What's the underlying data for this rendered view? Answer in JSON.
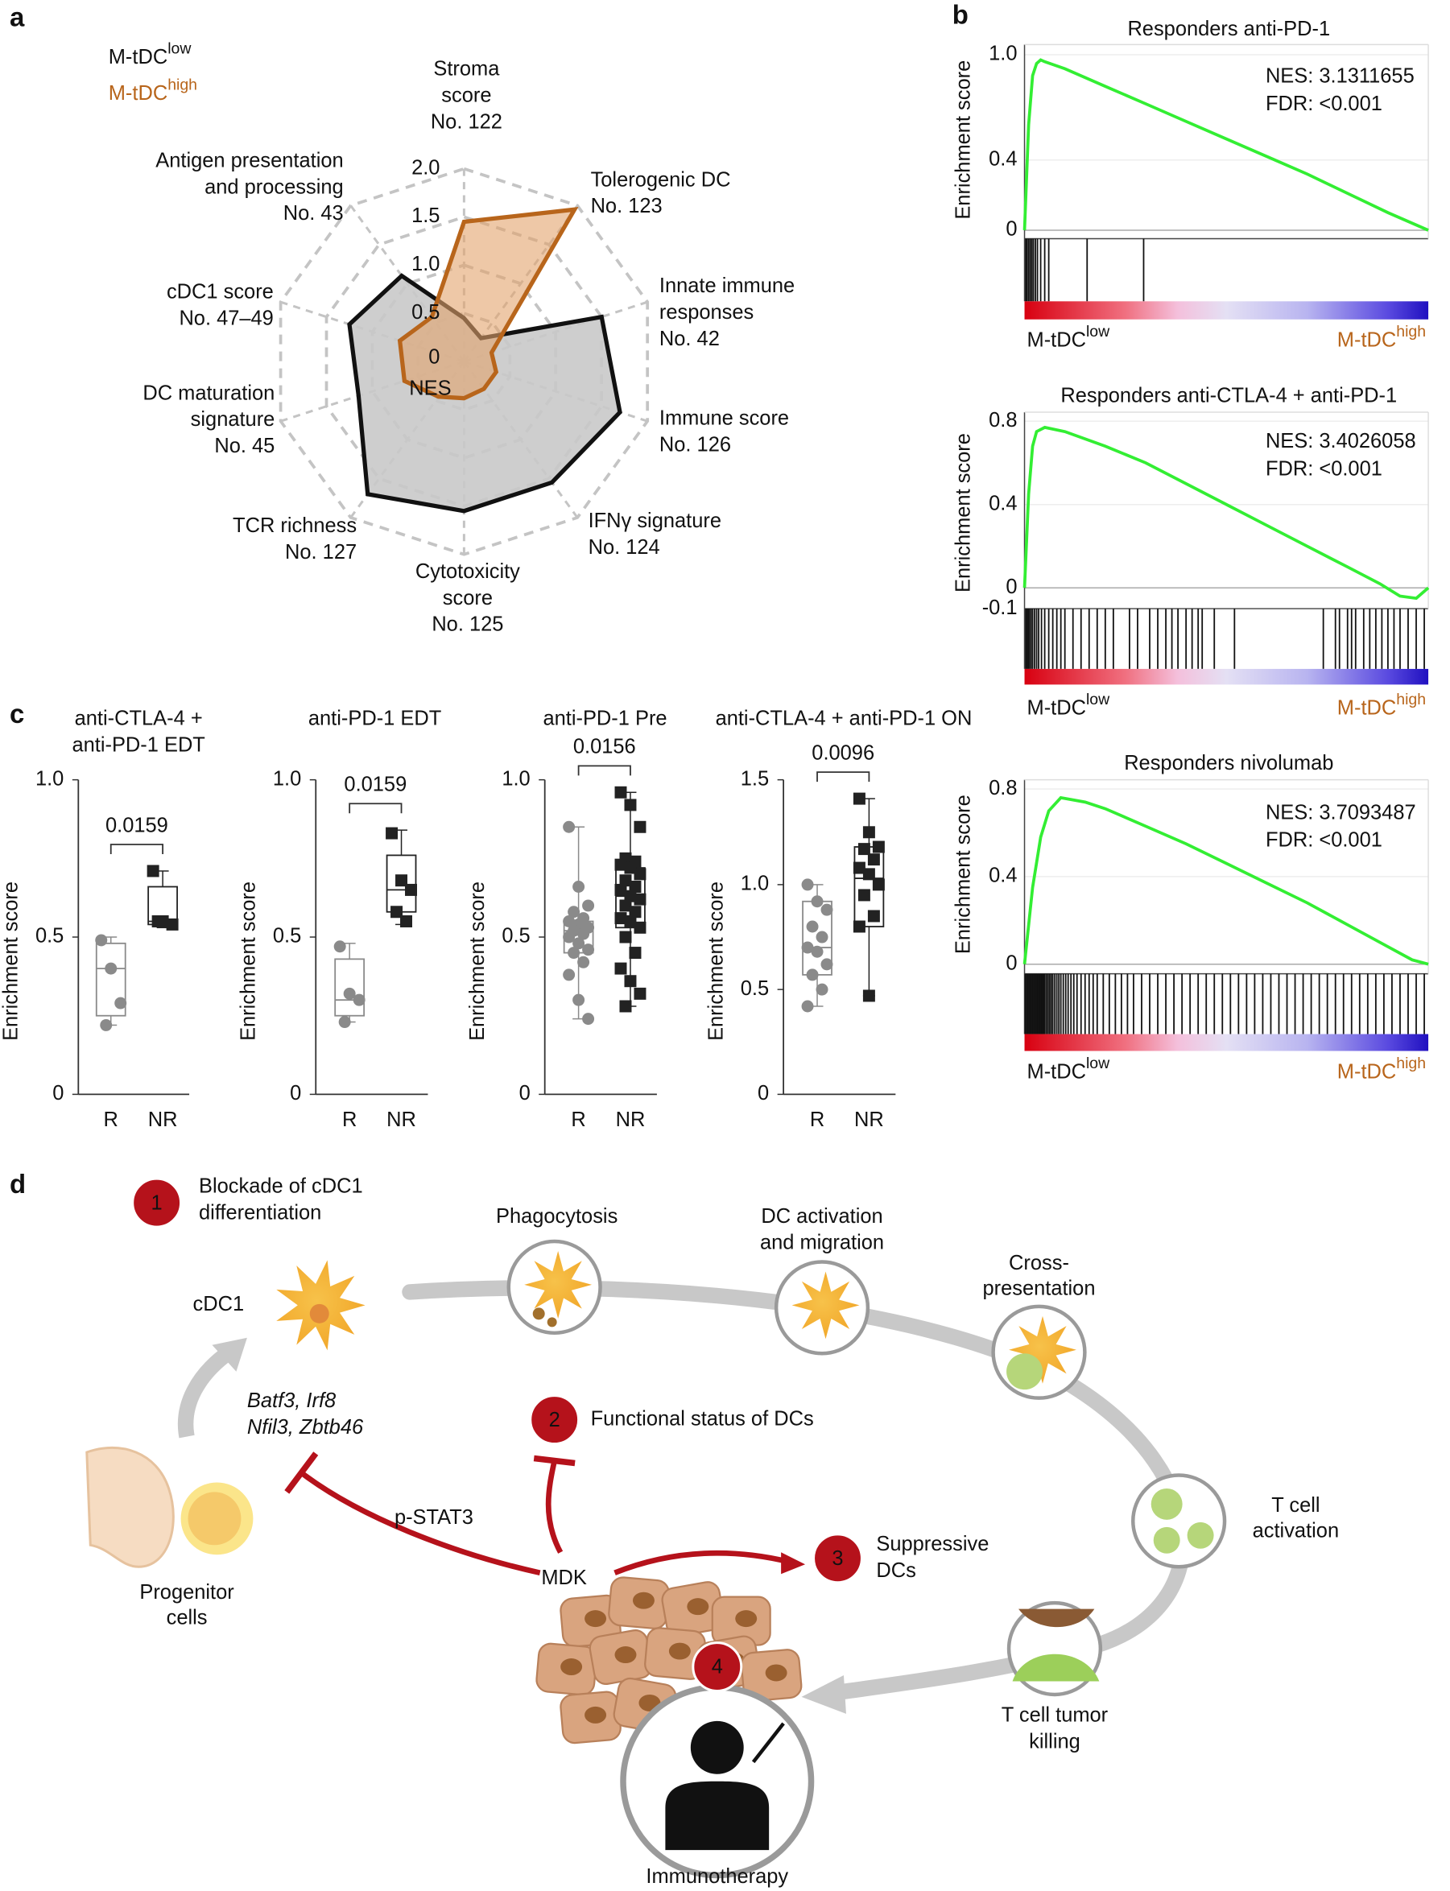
{
  "panel_labels": [
    "a",
    "b",
    "c",
    "d"
  ],
  "chart_data": [
    {
      "type": "radar",
      "axes": [
        [
          "Stroma",
          "score",
          "No. 122"
        ],
        [
          "Tolerogenic DC",
          "No. 123"
        ],
        [
          "Innate immune",
          "responses",
          "No. 42"
        ],
        [
          "Immune score",
          "No. 126"
        ],
        [
          "IFNγ signature",
          "No. 124"
        ],
        [
          "Cytotoxicity",
          "score",
          "No. 125"
        ],
        [
          "TCR richness",
          "No. 127"
        ],
        [
          "DC maturation",
          "signature",
          "No. 45"
        ],
        [
          "cDC1 score",
          "No. 47–49"
        ],
        [
          "Antigen presentation",
          "and processing",
          "No. 43"
        ]
      ],
      "r_label": "NES",
      "rlim": [
        0,
        2.0
      ],
      "rticks": [
        0,
        0.5,
        {
          "value": 1,
          "label": "1.0"
        },
        1.5,
        {
          "value": 2,
          "label": "2.0"
        }
      ],
      "series": [
        {
          "name": "M-tDC",
          "sup": "low",
          "color": "#111111",
          "fill": "#c9c9c9",
          "values": [
            0.45,
            0.3,
            1.5,
            1.7,
            1.55,
            1.55,
            1.7,
            1.15,
            1.25,
            1.1
          ]
        },
        {
          "name": "M-tDC",
          "sup": "high",
          "color": "#b8651b",
          "fill": "#e2a46c",
          "values": [
            1.45,
            1.95,
            0.3,
            0.35,
            0.35,
            0.38,
            0.45,
            0.65,
            0.7,
            0.57
          ]
        }
      ]
    },
    {
      "type": "gsea",
      "title": "Responders anti-PD-1",
      "ylabel": "Enrichment score",
      "color": "#33ee33",
      "annotation": [
        "NES: 3.1311655",
        "FDR: <0.001"
      ],
      "xlim": [
        0,
        100
      ],
      "ylim": [
        0,
        1.03
      ],
      "yticks": [
        0,
        0.4,
        {
          "value": 1,
          "label": "1.0"
        }
      ],
      "x": [
        0,
        1,
        2,
        3,
        4,
        5,
        10,
        20,
        30,
        40,
        50,
        60,
        70,
        80,
        90,
        100
      ],
      "values": [
        0,
        0.6,
        0.88,
        0.95,
        0.97,
        0.96,
        0.92,
        0.82,
        0.72,
        0.62,
        0.52,
        0.42,
        0.32,
        0.21,
        0.1,
        0
      ],
      "hits": [
        0.3,
        0.6,
        1,
        1.4,
        1.8,
        2.2,
        2.7,
        3.2,
        4,
        5,
        6,
        15.5,
        29.5
      ],
      "labels": [
        {
          "name": "M-tDC",
          "sup": "low",
          "color": "#111111"
        },
        {
          "name": "M-tDC",
          "sup": "high",
          "color": "#b8651b"
        }
      ]
    },
    {
      "type": "gsea",
      "title": "Responders anti-CTLA-4 + anti-PD-1",
      "ylabel": "Enrichment score",
      "color": "#33ee33",
      "annotation": [
        "NES: 3.4026058",
        "FDR: <0.001"
      ],
      "xlim": [
        0,
        100
      ],
      "ylim": [
        -0.1,
        0.82
      ],
      "yticks": [
        -0.1,
        0,
        0.4,
        0.8
      ],
      "x": [
        0,
        1,
        2,
        3,
        5,
        10,
        20,
        30,
        40,
        50,
        60,
        70,
        80,
        88,
        93,
        97,
        100
      ],
      "values": [
        0,
        0.45,
        0.68,
        0.75,
        0.77,
        0.75,
        0.68,
        0.6,
        0.5,
        0.4,
        0.3,
        0.2,
        0.1,
        0.02,
        -0.04,
        -0.05,
        0
      ],
      "hits": [
        0.3,
        0.6,
        0.9,
        1.2,
        1.6,
        2,
        2.5,
        3,
        3.5,
        4.2,
        5,
        6,
        7,
        8,
        9,
        10,
        12,
        14,
        16,
        18,
        20,
        22,
        26,
        28,
        31,
        33,
        35,
        36.5,
        38,
        40,
        41.5,
        43,
        44,
        47,
        52,
        74,
        77,
        78,
        80,
        81,
        82,
        84,
        85.5,
        87,
        88.5,
        90,
        91.5,
        93,
        95,
        97,
        99
      ],
      "labels": [
        {
          "name": "M-tDC",
          "sup": "low",
          "color": "#111111"
        },
        {
          "name": "M-tDC",
          "sup": "high",
          "color": "#b8651b"
        }
      ]
    },
    {
      "type": "gsea",
      "title": "Responders nivolumab",
      "ylabel": "Enrichment score",
      "color": "#33ee33",
      "annotation": [
        "NES: 3.7093487",
        "FDR: <0.001"
      ],
      "xlim": [
        0,
        100
      ],
      "ylim": [
        0,
        0.82
      ],
      "yticks": [
        0,
        0.4,
        0.8
      ],
      "x": [
        0,
        2,
        4,
        6,
        9,
        15,
        20,
        30,
        40,
        50,
        60,
        70,
        80,
        90,
        96,
        100
      ],
      "values": [
        0,
        0.35,
        0.58,
        0.7,
        0.76,
        0.74,
        0.71,
        0.63,
        0.55,
        0.46,
        0.37,
        0.28,
        0.18,
        0.08,
        0.02,
        0
      ],
      "hits": [
        0.2,
        0.5,
        0.8,
        1.1,
        1.4,
        1.7,
        2,
        2.3,
        2.6,
        2.9,
        3.2,
        3.5,
        3.8,
        4.1,
        4.4,
        4.7,
        5,
        5.4,
        5.8,
        6.2,
        6.6,
        7,
        7.5,
        8,
        8.5,
        9,
        9.6,
        10.2,
        10.8,
        11.5,
        12.2,
        13,
        14,
        15,
        16,
        17,
        18,
        19.5,
        21,
        22.5,
        24,
        25.5,
        27,
        29,
        31,
        33,
        35,
        37,
        39,
        41,
        43,
        45,
        47,
        49,
        51,
        53,
        55,
        57,
        59,
        61,
        63,
        65,
        67,
        69,
        71,
        73,
        75,
        77,
        79,
        81,
        83,
        85,
        87,
        89,
        91,
        93,
        95,
        97,
        99
      ],
      "labels": [
        {
          "name": "M-tDC",
          "sup": "low",
          "color": "#111111"
        },
        {
          "name": "M-tDC",
          "sup": "high",
          "color": "#b8651b"
        }
      ]
    },
    {
      "type": "box",
      "title": [
        "anti-CTLA-4 +",
        "anti-PD-1 EDT"
      ],
      "ylabel": "Enrichment score",
      "p_value": "0.0159",
      "categories": [
        "R",
        "NR"
      ],
      "ylim": [
        0,
        1.0
      ],
      "yticks": [
        0,
        0.5,
        {
          "value": 1,
          "label": "1.0"
        }
      ],
      "groups": [
        {
          "color": "#8a8a8a",
          "marker": "circle",
          "box": {
            "min": 0.22,
            "q1": 0.25,
            "median": 0.4,
            "q3": 0.48,
            "max": 0.5
          },
          "points": [
            0.49,
            0.4,
            0.29,
            0.22
          ]
        },
        {
          "color": "#222222",
          "marker": "square",
          "box": {
            "min": 0.53,
            "q1": 0.54,
            "median": 0.55,
            "q3": 0.66,
            "max": 0.71
          },
          "points": [
            0.71,
            0.55,
            0.54,
            0.55
          ]
        }
      ]
    },
    {
      "type": "box",
      "title": [
        "anti-PD-1 EDT"
      ],
      "ylabel": "Enrichment score",
      "p_value": "0.0159",
      "categories": [
        "R",
        "NR"
      ],
      "ylim": [
        0,
        1.0
      ],
      "yticks": [
        0,
        0.5,
        {
          "value": 1,
          "label": "1.0"
        }
      ],
      "groups": [
        {
          "color": "#8a8a8a",
          "marker": "circle",
          "box": {
            "min": 0.23,
            "q1": 0.25,
            "median": 0.3,
            "q3": 0.43,
            "max": 0.48
          },
          "points": [
            0.47,
            0.32,
            0.3,
            0.23
          ]
        },
        {
          "color": "#222222",
          "marker": "square",
          "box": {
            "min": 0.54,
            "q1": 0.58,
            "median": 0.65,
            "q3": 0.76,
            "max": 0.84
          },
          "points": [
            0.83,
            0.68,
            0.65,
            0.58,
            0.55
          ]
        }
      ]
    },
    {
      "type": "box",
      "title": [
        "anti-PD-1 Pre"
      ],
      "ylabel": "Enrichment score",
      "p_value": "0.0156",
      "categories": [
        "R",
        "NR"
      ],
      "ylim": [
        0,
        1.0
      ],
      "yticks": [
        0,
        0.5,
        {
          "value": 1,
          "label": "1.0"
        }
      ],
      "groups": [
        {
          "color": "#8a8a8a",
          "marker": "circle",
          "box": {
            "min": 0.24,
            "q1": 0.45,
            "median": 0.52,
            "q3": 0.55,
            "max": 0.85
          },
          "points": [
            0.85,
            0.66,
            0.6,
            0.58,
            0.56,
            0.55,
            0.54,
            0.53,
            0.52,
            0.51,
            0.5,
            0.48,
            0.46,
            0.45,
            0.42,
            0.38,
            0.3,
            0.24
          ]
        },
        {
          "color": "#222222",
          "marker": "square",
          "box": {
            "min": 0.28,
            "q1": 0.53,
            "median": 0.63,
            "q3": 0.72,
            "max": 0.96
          },
          "points": [
            0.96,
            0.92,
            0.85,
            0.75,
            0.74,
            0.73,
            0.72,
            0.7,
            0.68,
            0.66,
            0.65,
            0.63,
            0.62,
            0.6,
            0.58,
            0.56,
            0.55,
            0.53,
            0.5,
            0.45,
            0.4,
            0.36,
            0.32,
            0.28
          ]
        }
      ]
    },
    {
      "type": "box",
      "title": [
        "anti-CTLA-4 + anti-PD-1 ON"
      ],
      "ylabel": "Enrichment score",
      "p_value": "0.0096",
      "categories": [
        "R",
        "NR"
      ],
      "ylim": [
        0,
        1.5
      ],
      "yticks": [
        0,
        0.5,
        {
          "value": 1,
          "label": "1.0"
        },
        1.5
      ],
      "groups": [
        {
          "color": "#8a8a8a",
          "marker": "circle",
          "box": {
            "min": 0.42,
            "q1": 0.57,
            "median": 0.7,
            "q3": 0.92,
            "max": 1.0
          },
          "points": [
            1.0,
            0.92,
            0.88,
            0.8,
            0.75,
            0.7,
            0.68,
            0.62,
            0.57,
            0.5,
            0.42
          ]
        },
        {
          "color": "#222222",
          "marker": "square",
          "box": {
            "min": 0.47,
            "q1": 0.8,
            "median": 1.03,
            "q3": 1.18,
            "max": 1.41
          },
          "points": [
            1.41,
            1.25,
            1.18,
            1.17,
            1.12,
            1.08,
            1.05,
            1.0,
            0.95,
            0.85,
            0.8,
            0.47
          ]
        }
      ]
    }
  ],
  "diagram": {
    "steps": [
      {
        "number": "1",
        "label": [
          "Blockade of cDC1",
          "differentiation"
        ]
      },
      {
        "number": "2",
        "label": [
          "Functional status of DCs"
        ]
      },
      {
        "number": "3",
        "label": [
          "Suppressive",
          "DCs"
        ]
      },
      {
        "number": "4",
        "label": [
          "Immunotherapy"
        ]
      }
    ],
    "cells": {
      "cdc1": [
        "cDC1"
      ],
      "progenitor": [
        "Progenitor",
        "cells"
      ],
      "mdk": [
        "MDK"
      ]
    },
    "genes": [
      "Batf3, Irf8",
      "Nfil3, Zbtb46"
    ],
    "signal": "p-STAT3",
    "stages": [
      {
        "label": [
          "Phagocytosis"
        ]
      },
      {
        "label": [
          "DC activation",
          "and migration"
        ]
      },
      {
        "label": [
          "Cross-",
          "presentation"
        ]
      },
      {
        "label": [
          "T cell",
          "activation"
        ]
      },
      {
        "label": [
          "T cell tumor",
          "killing"
        ]
      }
    ]
  }
}
